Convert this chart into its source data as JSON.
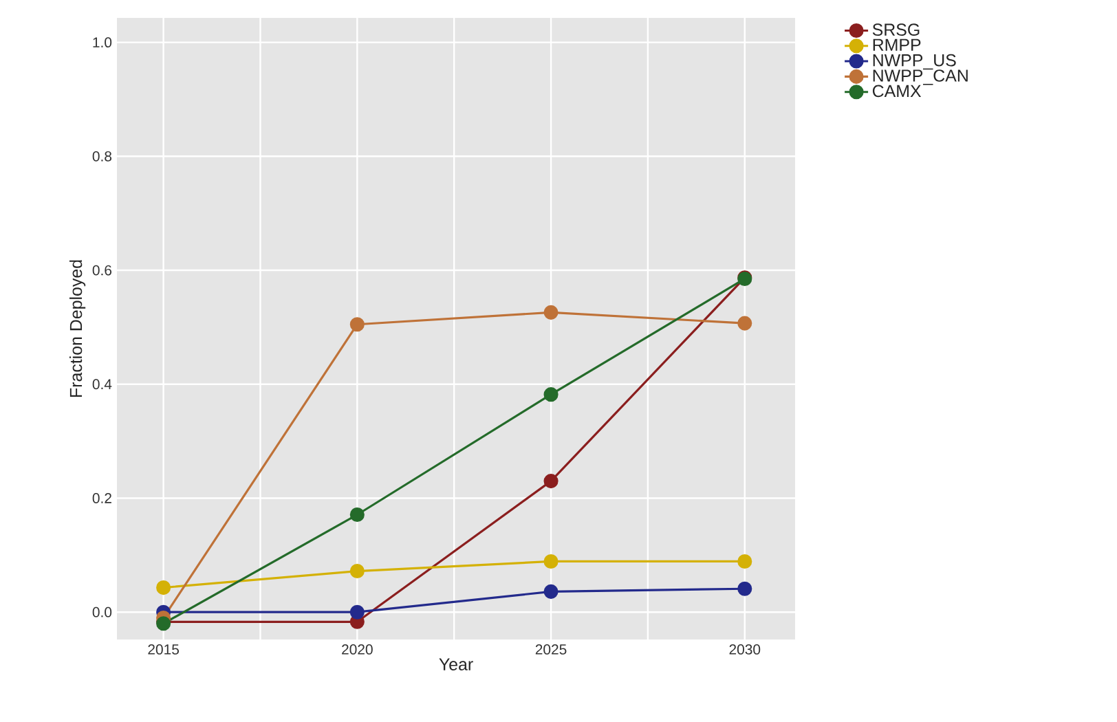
{
  "chart_data": {
    "type": "line",
    "xlabel": "Year",
    "ylabel": "Fraction Deployed",
    "x": [
      2015,
      2020,
      2025,
      2030
    ],
    "series": [
      {
        "name": "SRSG",
        "color": "#8b1e1e",
        "values": [
          -0.017,
          -0.017,
          0.23,
          0.587
        ]
      },
      {
        "name": "RMPP",
        "color": "#d4b106",
        "values": [
          0.043,
          0.072,
          0.089,
          0.089
        ]
      },
      {
        "name": "NWPP_US",
        "color": "#232a8c",
        "values": [
          0.0,
          0.0,
          0.036,
          0.041
        ]
      },
      {
        "name": "NWPP_CAN",
        "color": "#bf7238",
        "values": [
          -0.01,
          0.505,
          0.526,
          0.507
        ]
      },
      {
        "name": "CAMX",
        "color": "#246b2a",
        "values": [
          -0.02,
          0.171,
          0.382,
          0.585
        ]
      }
    ],
    "xlim": [
      2013.8,
      2031.3
    ],
    "ylim": [
      -0.048,
      1.043
    ],
    "xticks": [
      2015,
      {
        "value": 2017.5,
        "label": null
      },
      2020,
      {
        "value": 2022.5,
        "label": null
      },
      2025,
      {
        "value": 2027.5,
        "label": null
      },
      2030
    ],
    "yticks": [
      {
        "value": 0,
        "label": "0.0"
      },
      {
        "value": 0.2,
        "label": "0.2"
      },
      {
        "value": 0.4,
        "label": "0.4"
      },
      {
        "value": 0.6,
        "label": "0.6"
      },
      {
        "value": 0.8,
        "label": "0.8"
      },
      {
        "value": 1.0,
        "label": "1.0"
      }
    ],
    "grid": true,
    "legend": "top right",
    "marker": "circle",
    "line_style": "solid"
  }
}
